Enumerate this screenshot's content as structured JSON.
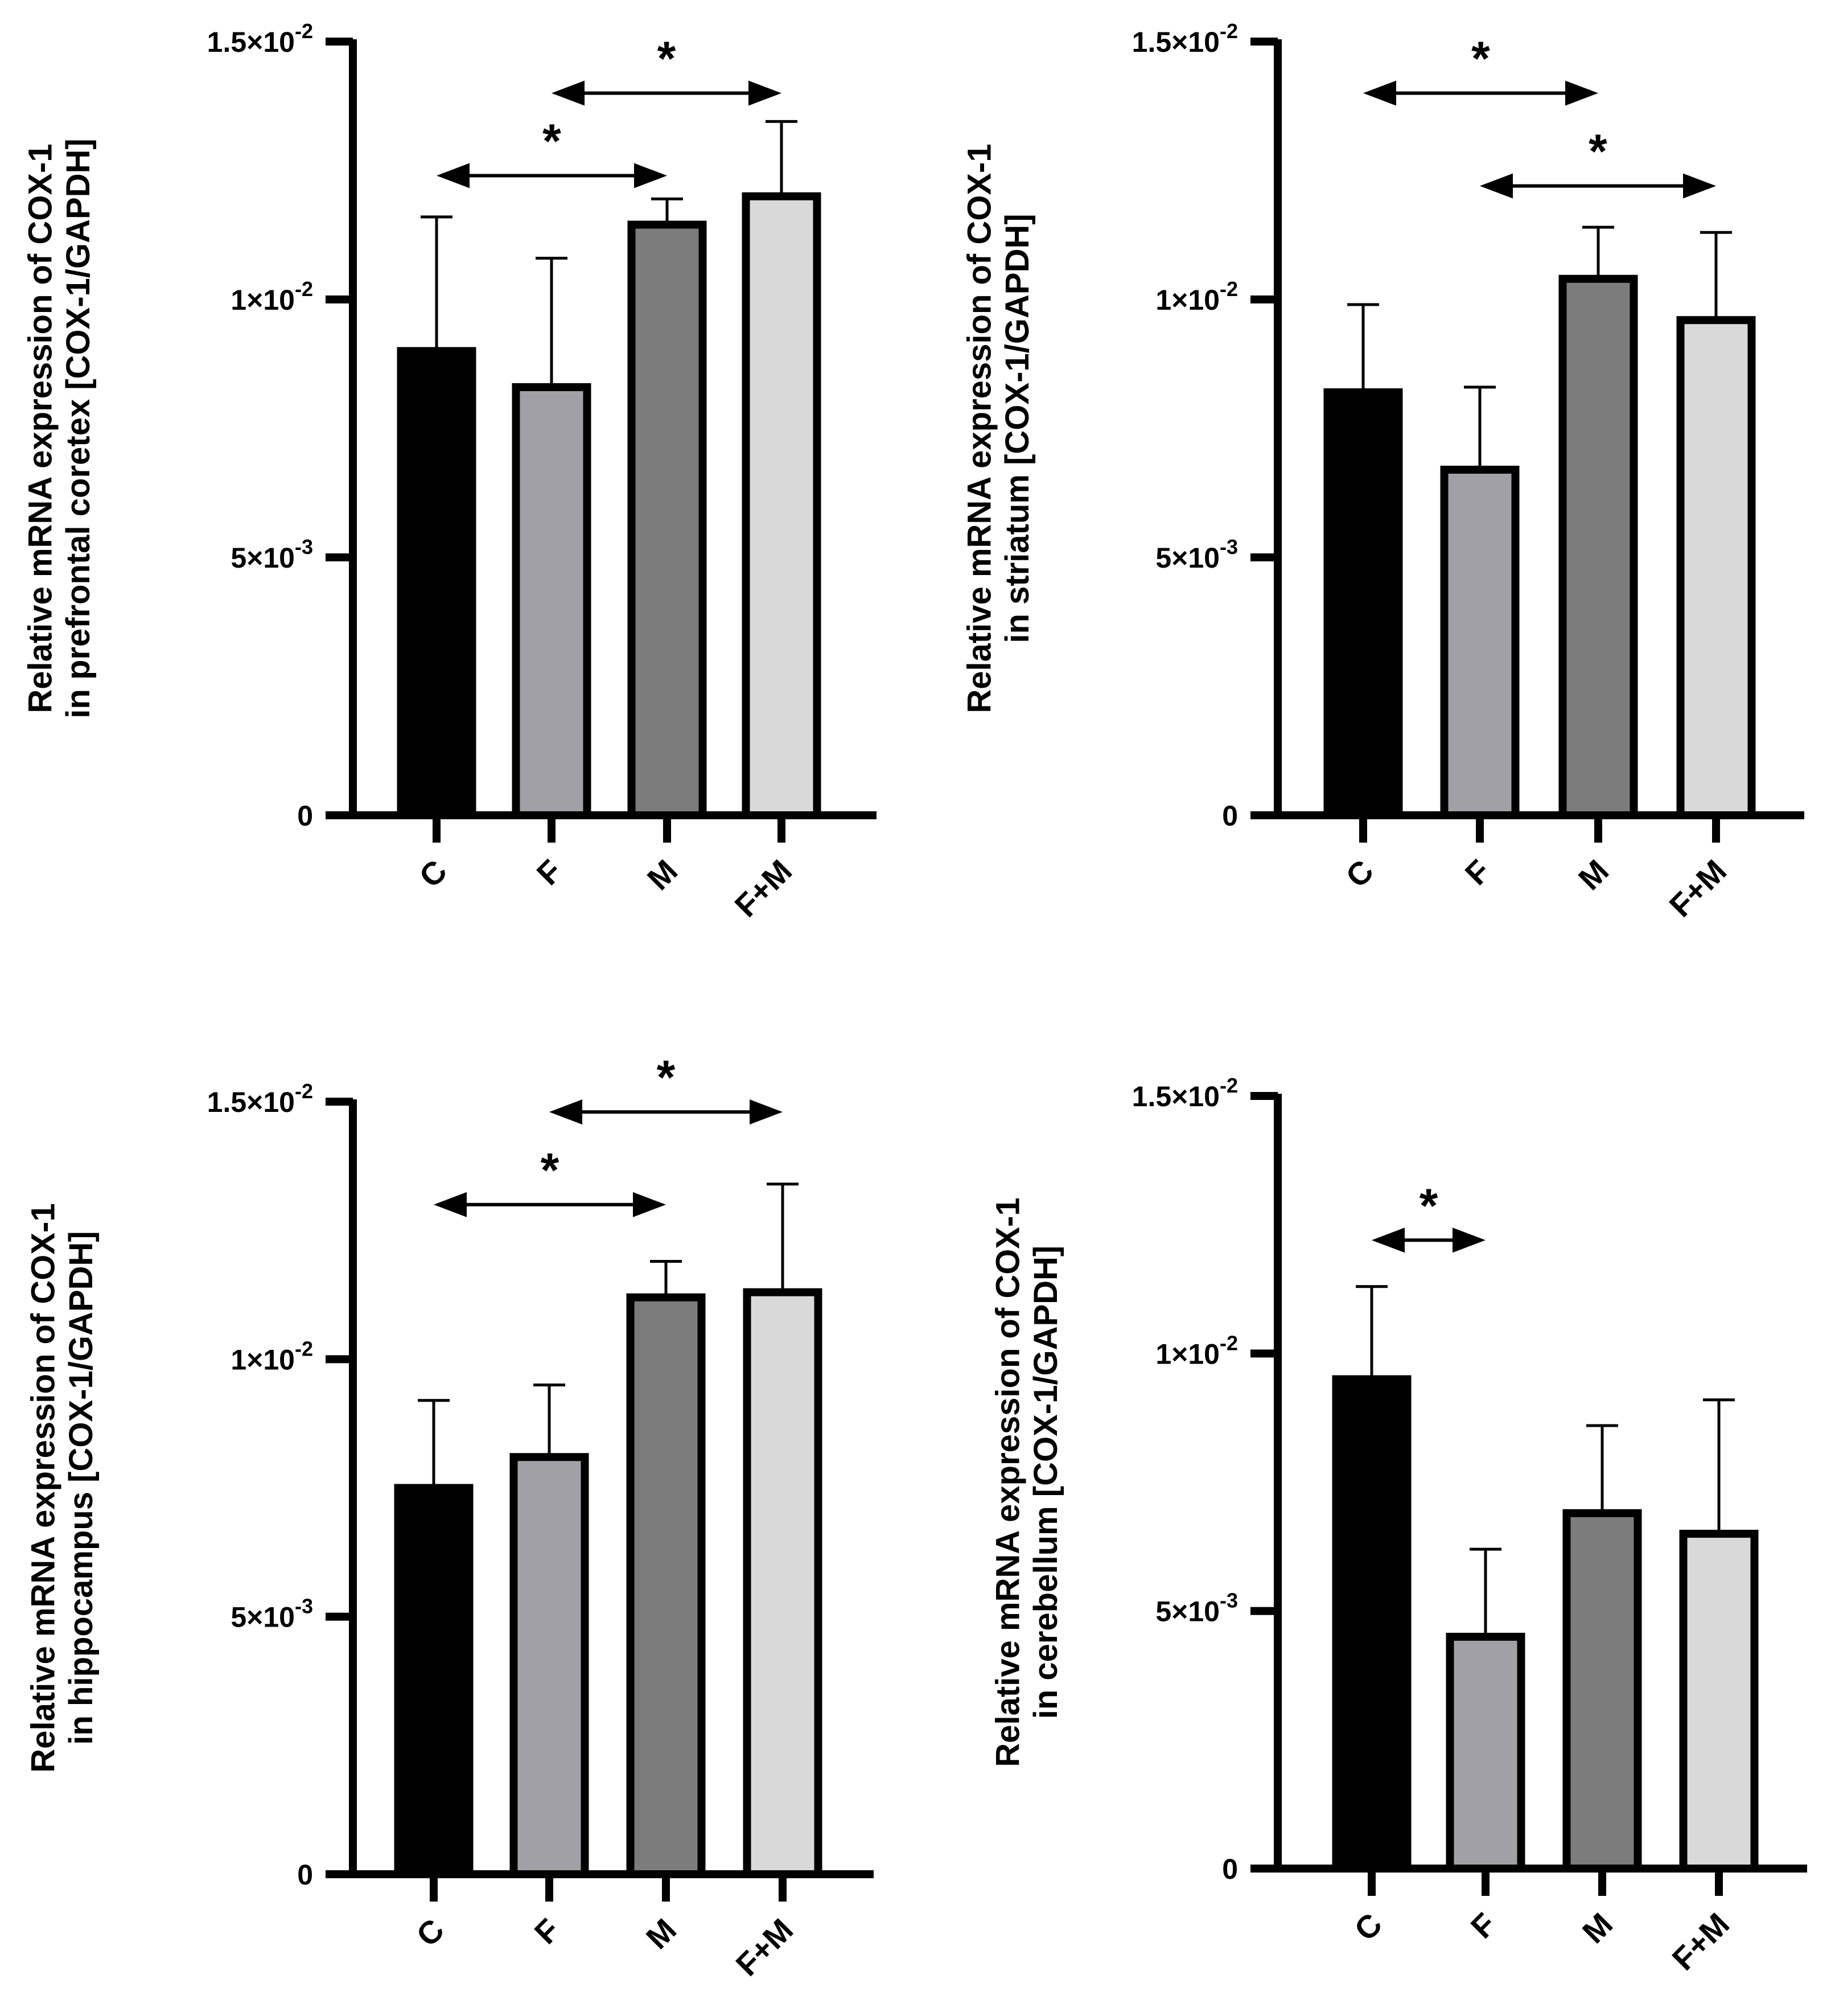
{
  "chart_data": [
    {
      "type": "bar",
      "panel": "top-left",
      "ylabel_line1": "Relative mRNA expression of COX-1",
      "ylabel_line2": "in prefrontal coretex [COX-1/GAPDH]",
      "ylim": [
        0,
        0.015
      ],
      "yticks": [
        {
          "value": 0,
          "mant": "0",
          "exp": ""
        },
        {
          "value": 0.005,
          "mant": "5×10",
          "exp": "-3"
        },
        {
          "value": 0.01,
          "mant": "1×10",
          "exp": "-2"
        },
        {
          "value": 0.015,
          "mant": "1.5×10",
          "exp": "-2"
        }
      ],
      "categories": [
        "C",
        "F",
        "M",
        "F+M"
      ],
      "values": [
        0.009,
        0.0083,
        0.01145,
        0.012
      ],
      "errors": [
        0.0026,
        0.0025,
        0.0005,
        0.00145
      ],
      "colors": [
        "#000000",
        "#a1a0a6",
        "#7c7c7c",
        "#d9d9d9"
      ],
      "significance": [
        {
          "from": 0,
          "to": 2,
          "y": 0.0124,
          "label": "*"
        },
        {
          "from": 1,
          "to": 3,
          "y": 0.014,
          "label": "*"
        }
      ]
    },
    {
      "type": "bar",
      "panel": "top-right",
      "ylabel_line1": "Relative mRNA expression of COX-1",
      "ylabel_line2": "in striatum [COX-1/GAPDH]",
      "ylim": [
        0,
        0.015
      ],
      "yticks": [
        {
          "value": 0,
          "mant": "0",
          "exp": ""
        },
        {
          "value": 0.005,
          "mant": "5×10",
          "exp": "-3"
        },
        {
          "value": 0.01,
          "mant": "1×10",
          "exp": "-2"
        },
        {
          "value": 0.015,
          "mant": "1.5×10",
          "exp": "-2"
        }
      ],
      "categories": [
        "C",
        "F",
        "M",
        "F+M"
      ],
      "values": [
        0.0082,
        0.0067,
        0.0104,
        0.0096
      ],
      "errors": [
        0.0017,
        0.0016,
        0.001,
        0.0017
      ],
      "colors": [
        "#000000",
        "#a1a0a6",
        "#7c7c7c",
        "#d9d9d9"
      ],
      "significance": [
        {
          "from": 0,
          "to": 2,
          "y": 0.014,
          "label": "*"
        },
        {
          "from": 1,
          "to": 3,
          "y": 0.0122,
          "label": "*"
        }
      ]
    },
    {
      "type": "bar",
      "panel": "bottom-left",
      "ylabel_line1": "Relative mRNA expression of COX-1",
      "ylabel_line2": "in hippocampus [COX-1/GAPDH]",
      "ylim": [
        0,
        0.015
      ],
      "yticks": [
        {
          "value": 0,
          "mant": "0",
          "exp": ""
        },
        {
          "value": 0.005,
          "mant": "5×10",
          "exp": "-3"
        },
        {
          "value": 0.01,
          "mant": "1×10",
          "exp": "-2"
        },
        {
          "value": 0.015,
          "mant": "1.5×10",
          "exp": "-2"
        }
      ],
      "categories": [
        "C",
        "F",
        "M",
        "F+M"
      ],
      "values": [
        0.0075,
        0.0081,
        0.0112,
        0.0113
      ],
      "errors": [
        0.0017,
        0.0014,
        0.0007,
        0.0021
      ],
      "colors": [
        "#000000",
        "#a1a0a6",
        "#7c7c7c",
        "#d9d9d9"
      ],
      "significance": [
        {
          "from": 0,
          "to": 2,
          "y": 0.013,
          "label": "*"
        },
        {
          "from": 1,
          "to": 3,
          "y": 0.0148,
          "label": "*"
        }
      ]
    },
    {
      "type": "bar",
      "panel": "bottom-right",
      "ylabel_line1": "Relative mRNA expression of COX-1",
      "ylabel_line2": "in cerebellum [COX-1/GAPDH]",
      "ylim": [
        0,
        0.015
      ],
      "yticks": [
        {
          "value": 0,
          "mant": "0",
          "exp": ""
        },
        {
          "value": 0.005,
          "mant": "5×10",
          "exp": "-3"
        },
        {
          "value": 0.01,
          "mant": "1×10",
          "exp": "-2"
        },
        {
          "value": 0.015,
          "mant": "1.5×10",
          "exp": "-2"
        }
      ],
      "categories": [
        "C",
        "F",
        "M",
        "F+M"
      ],
      "values": [
        0.0095,
        0.0045,
        0.0069,
        0.0065
      ],
      "errors": [
        0.0018,
        0.0017,
        0.0017,
        0.0026
      ],
      "colors": [
        "#000000",
        "#a1a0a6",
        "#7c7c7c",
        "#d9d9d9"
      ],
      "significance": [
        {
          "from": 0,
          "to": 1,
          "y": 0.0122,
          "label": "*"
        }
      ]
    }
  ]
}
